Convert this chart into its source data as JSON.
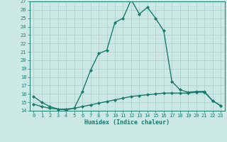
{
  "x": [
    0,
    1,
    2,
    3,
    4,
    5,
    6,
    7,
    8,
    9,
    10,
    11,
    12,
    13,
    14,
    15,
    16,
    17,
    18,
    19,
    20,
    21,
    22,
    23
  ],
  "line1_y": [
    15.7,
    15.0,
    14.5,
    14.2,
    14.1,
    14.3,
    16.3,
    18.8,
    20.8,
    21.2,
    24.5,
    25.0,
    27.2,
    25.5,
    26.3,
    25.0,
    23.5,
    17.5,
    16.5,
    16.2,
    16.3,
    16.3,
    15.2,
    14.6
  ],
  "line2_y": [
    14.8,
    14.5,
    14.3,
    14.2,
    14.2,
    14.3,
    14.5,
    14.7,
    14.9,
    15.1,
    15.3,
    15.5,
    15.7,
    15.8,
    15.9,
    16.0,
    16.1,
    16.1,
    16.1,
    16.1,
    16.2,
    16.2,
    15.2,
    14.6
  ],
  "color": "#1a7a6e",
  "bg_color": "#cce8e4",
  "grid_color": "#aacfcb",
  "xlabel": "Humidex (Indice chaleur)",
  "xlim_min": -0.5,
  "xlim_max": 23.5,
  "ylim_min": 14,
  "ylim_max": 27,
  "yticks": [
    14,
    15,
    16,
    17,
    18,
    19,
    20,
    21,
    22,
    23,
    24,
    25,
    26,
    27
  ],
  "xticks": [
    0,
    1,
    2,
    3,
    4,
    5,
    6,
    7,
    8,
    9,
    10,
    11,
    12,
    13,
    14,
    15,
    16,
    17,
    18,
    19,
    20,
    21,
    22,
    23
  ],
  "marker": "D",
  "marker_size": 2.0,
  "line_width": 1.0,
  "tick_fontsize": 5.0,
  "xlabel_fontsize": 6.0
}
